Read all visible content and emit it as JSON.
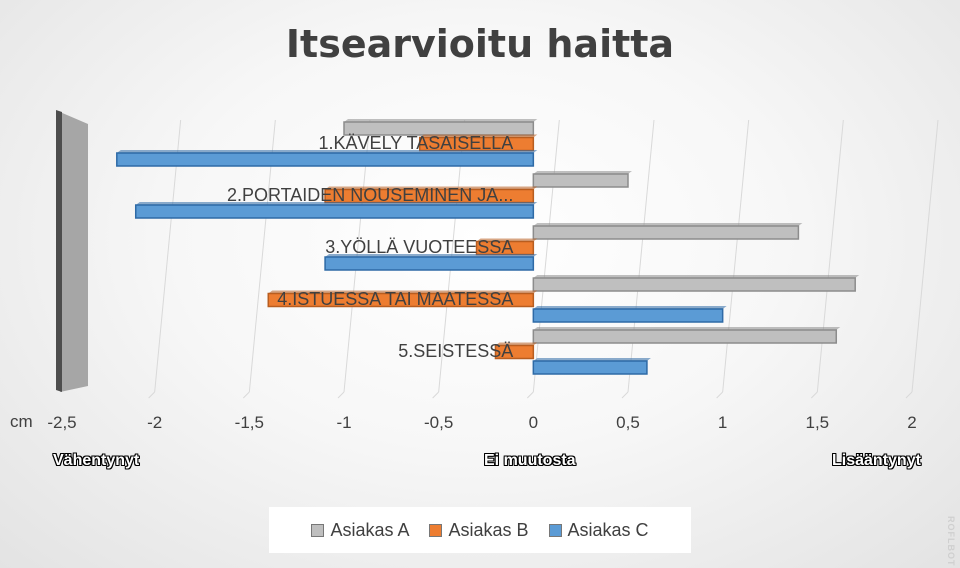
{
  "chart_data": {
    "type": "bar",
    "orientation": "horizontal",
    "title": "Itsearvioitu haitta",
    "unit_label": "cm",
    "categories": [
      "1.KÄVELY TASAISELLA",
      "2.PORTAIDEN NOUSEMINEN JA...",
      "3.YÖLLÄ VUOTEESSA",
      "4.ISTUESSA TAI MAATESSA",
      "5.SEISTESSÄ"
    ],
    "series": [
      {
        "name": "Asiakas A",
        "color": "#bfbfbf",
        "values": [
          -1.0,
          0.5,
          1.4,
          1.7,
          1.6
        ]
      },
      {
        "name": "Asiakas B",
        "color": "#ed7d31",
        "values": [
          -0.6,
          -1.1,
          -0.3,
          -1.4,
          -0.2
        ]
      },
      {
        "name": "Asiakas C",
        "color": "#5b9bd5",
        "values": [
          -2.2,
          -2.1,
          -1.1,
          1.0,
          0.6
        ]
      }
    ],
    "xlim": [
      -2.5,
      2
    ],
    "x_ticks": [
      "-2,5",
      "-2",
      "-1,5",
      "-1",
      "-0,5",
      "0",
      "0,5",
      "1",
      "1,5",
      "2"
    ],
    "grid": true,
    "legend_position": "bottom",
    "region_labels": {
      "left": "Vähentynyt",
      "center": "Ei muutosta",
      "right": "Lisääntynyt"
    }
  },
  "watermark": "ROFLBOT"
}
